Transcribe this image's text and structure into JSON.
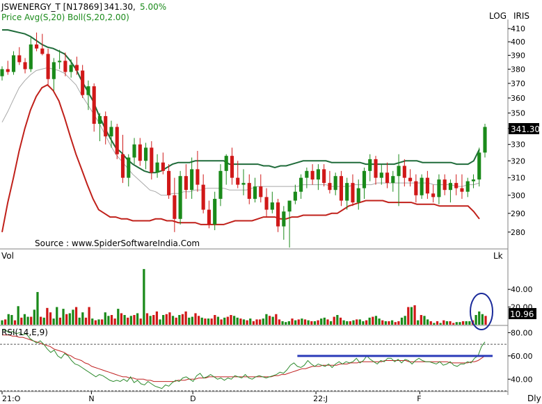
{
  "header": {
    "symbol": "JSWENERGY_T [N17869]",
    "price": "341.30,",
    "change": "5.00%",
    "indicators_prefix": "Price",
    "avg_label": "Avg(S,20)",
    "boll_label": "Boll(S,20,2.00)",
    "log_label": "LOG",
    "iris_label": "IRIS"
  },
  "source_text": "Source : www.SpiderSoftwareIndia.Com",
  "price_badge": "341.30",
  "volume_badge": "10.96",
  "volume_panel": {
    "title": "Vol",
    "unit": "Lk"
  },
  "rsi_panel": {
    "title": "RSI(14,E,9)"
  },
  "timeframe_label": "Dly",
  "colors": {
    "up": "#1a8a1a",
    "down": "#d01818",
    "upper_band": "#1f6b3a",
    "lower_band": "#c0201a",
    "avg": "#a8a8a8",
    "rsi": "#2e8b2e",
    "rsi_signal": "#c02020",
    "trendline": "#2a3ab8",
    "highlight": "#1a2a9a"
  },
  "chart_data": [
    {
      "type": "candlestick",
      "title": "JSWENERGY_T [N17869]",
      "scale": "log",
      "ylim": [
        272,
        416
      ],
      "yticks": [
        280,
        290,
        300,
        310,
        320,
        330,
        340,
        350,
        360,
        370,
        380,
        390,
        400,
        410
      ],
      "x_ticks": [
        "21:O",
        "N",
        "D",
        "22:J",
        "F"
      ],
      "last_price": 341.3,
      "candles": [
        [
          375,
          382,
          372,
          380
        ],
        [
          380,
          386,
          376,
          378
        ],
        [
          378,
          393,
          376,
          390
        ],
        [
          390,
          396,
          383,
          385
        ],
        [
          385,
          388,
          377,
          380
        ],
        [
          380,
          403,
          378,
          398
        ],
        [
          398,
          407,
          393,
          395
        ],
        [
          395,
          406,
          390,
          391
        ],
        [
          391,
          395,
          368,
          373
        ],
        [
          373,
          388,
          365,
          385
        ],
        [
          385,
          394,
          380,
          386
        ],
        [
          386,
          392,
          375,
          378
        ],
        [
          378,
          387,
          374,
          383
        ],
        [
          383,
          389,
          376,
          379
        ],
        [
          379,
          383,
          360,
          362
        ],
        [
          362,
          372,
          352,
          368
        ],
        [
          368,
          370,
          338,
          343
        ],
        [
          343,
          350,
          332,
          348
        ],
        [
          348,
          351,
          330,
          335
        ],
        [
          335,
          345,
          328,
          341
        ],
        [
          341,
          343,
          321,
          324
        ],
        [
          324,
          336,
          307,
          310
        ],
        [
          310,
          324,
          305,
          322
        ],
        [
          322,
          334,
          318,
          330
        ],
        [
          330,
          334,
          317,
          320
        ],
        [
          320,
          331,
          315,
          328
        ],
        [
          328,
          332,
          309,
          313
        ],
        [
          313,
          324,
          310,
          319
        ],
        [
          319,
          325,
          312,
          314
        ],
        [
          314,
          318,
          298,
          300
        ],
        [
          300,
          310,
          280,
          287
        ],
        [
          287,
          314,
          284,
          311
        ],
        [
          311,
          318,
          298,
          303
        ],
        [
          303,
          322,
          298,
          315
        ],
        [
          315,
          326,
          302,
          306
        ],
        [
          306,
          312,
          290,
          292
        ],
        [
          292,
          297,
          282,
          284
        ],
        [
          284,
          302,
          281,
          298
        ],
        [
          298,
          318,
          294,
          314
        ],
        [
          314,
          324,
          306,
          323
        ],
        [
          323,
          328,
          306,
          310
        ],
        [
          310,
          320,
          304,
          306
        ],
        [
          306,
          315,
          300,
          307
        ],
        [
          307,
          312,
          295,
          298
        ],
        [
          298,
          310,
          296,
          305
        ],
        [
          305,
          312,
          296,
          299
        ],
        [
          299,
          304,
          288,
          292
        ],
        [
          292,
          302,
          290,
          296
        ],
        [
          296,
          298,
          280,
          283
        ],
        [
          283,
          294,
          276,
          291
        ],
        [
          291,
          297,
          272,
          297
        ],
        [
          297,
          306,
          295,
          302
        ],
        [
          302,
          312,
          298,
          310
        ],
        [
          310,
          316,
          304,
          314
        ],
        [
          314,
          318,
          306,
          309
        ],
        [
          309,
          318,
          303,
          315
        ],
        [
          315,
          318,
          305,
          307
        ],
        [
          307,
          314,
          301,
          303
        ],
        [
          303,
          313,
          300,
          311
        ],
        [
          311,
          314,
          294,
          297
        ],
        [
          297,
          310,
          292,
          307
        ],
        [
          307,
          312,
          294,
          296
        ],
        [
          296,
          309,
          292,
          304
        ],
        [
          304,
          316,
          298,
          314
        ],
        [
          314,
          324,
          308,
          321
        ],
        [
          321,
          323,
          306,
          310
        ],
        [
          310,
          318,
          306,
          313
        ],
        [
          313,
          319,
          304,
          307
        ],
        [
          307,
          314,
          302,
          311
        ],
        [
          311,
          324,
          294,
          317
        ],
        [
          317,
          321,
          305,
          310
        ],
        [
          310,
          315,
          305,
          308
        ],
        [
          308,
          312,
          296,
          300
        ],
        [
          300,
          312,
          298,
          310
        ],
        [
          310,
          314,
          298,
          301
        ],
        [
          301,
          306,
          296,
          299
        ],
        [
          299,
          312,
          295,
          309
        ],
        [
          309,
          312,
          300,
          303
        ],
        [
          303,
          309,
          296,
          307
        ],
        [
          307,
          312,
          300,
          304
        ],
        [
          304,
          312,
          298,
          302
        ],
        [
          302,
          310,
          299,
          308
        ],
        [
          308,
          312,
          304,
          309
        ],
        [
          309,
          328,
          305,
          325
        ],
        [
          325,
          343,
          322,
          341
        ]
      ],
      "bollinger_upper": [
        409,
        409,
        408,
        407,
        406,
        404,
        401,
        398,
        396,
        395,
        393,
        391,
        386,
        380,
        372,
        365,
        358,
        349,
        341,
        334,
        328,
        325,
        321,
        318,
        316,
        314,
        313,
        313,
        314,
        316,
        318,
        319,
        319,
        319,
        320,
        320,
        320,
        320,
        320,
        320,
        318,
        318,
        318,
        318,
        318,
        318,
        317,
        317,
        316,
        317,
        317,
        318,
        319,
        320,
        320,
        320,
        320,
        320,
        319,
        319,
        319,
        319,
        319,
        319,
        318,
        318,
        318,
        318,
        318,
        318,
        319,
        320,
        320,
        320,
        319,
        319,
        319,
        319,
        319,
        319,
        318,
        318,
        318,
        320,
        327
      ],
      "bollinger_lower": [
        280,
        296,
        310,
        326,
        340,
        352,
        361,
        367,
        369,
        365,
        358,
        347,
        335,
        324,
        315,
        306,
        298,
        292,
        290,
        288,
        288,
        287,
        287,
        286,
        286,
        286,
        286,
        287,
        287,
        286,
        286,
        285,
        285,
        285,
        285,
        284,
        284,
        284,
        284,
        284,
        285,
        286,
        286,
        286,
        286,
        287,
        288,
        288,
        288,
        287,
        287,
        288,
        288,
        289,
        289,
        289,
        289,
        289,
        290,
        290,
        292,
        294,
        295,
        296,
        297,
        297,
        297,
        297,
        296,
        296,
        296,
        296,
        296,
        295,
        295,
        295,
        295,
        294,
        294,
        294,
        294,
        294,
        294,
        291,
        287
      ],
      "moving_average": [
        344,
        351,
        359,
        367,
        372,
        376,
        379,
        380,
        381,
        380,
        379,
        377,
        373,
        369,
        362,
        356,
        350,
        344,
        337,
        330,
        324,
        320,
        316,
        312,
        309,
        306,
        303,
        302,
        300,
        300,
        301,
        301,
        302,
        302,
        303,
        303,
        304,
        304,
        304,
        304,
        303,
        303,
        303,
        303,
        304,
        305,
        305,
        305,
        305,
        305,
        305,
        305,
        305,
        306,
        306,
        306,
        306,
        306,
        305,
        305,
        305,
        305,
        306,
        306,
        306,
        306,
        307,
        307,
        307,
        307,
        307,
        307,
        307,
        307,
        307,
        307,
        306,
        306,
        306,
        306,
        305,
        305,
        306,
        306,
        307
      ]
    },
    {
      "type": "bar",
      "title": "Vol",
      "unit": "Lk",
      "ylim": [
        0,
        70
      ],
      "yticks": [
        20,
        40
      ],
      "last_value": 10.96,
      "values": [
        5,
        6,
        12,
        11,
        5,
        21,
        8,
        12,
        9,
        9,
        17,
        37,
        9,
        8,
        19,
        14,
        7,
        20,
        8,
        18,
        12,
        13,
        17,
        20,
        8,
        14,
        8,
        20,
        7,
        5,
        6,
        6,
        14,
        10,
        11,
        7,
        18,
        13,
        11,
        8,
        10,
        11,
        13,
        7,
        63,
        13,
        10,
        11,
        15,
        6,
        11,
        12,
        14,
        10,
        8,
        11,
        12,
        15,
        8,
        9,
        13,
        10,
        8,
        7,
        7,
        7,
        11,
        9,
        6,
        8,
        9,
        11,
        10,
        8,
        7,
        6,
        5,
        7,
        4,
        6,
        6,
        7,
        12,
        10,
        9,
        12,
        6,
        4,
        3,
        4,
        7,
        5,
        6,
        7,
        6,
        5,
        4,
        4,
        5,
        7,
        8,
        6,
        4,
        9,
        11,
        8,
        5,
        4,
        4,
        5,
        6,
        6,
        4,
        5,
        8,
        9,
        10,
        7,
        5,
        4,
        4,
        5,
        3,
        4,
        8,
        10,
        20,
        20,
        22,
        5,
        11,
        10,
        6,
        4,
        2,
        4,
        2,
        5,
        4,
        4,
        2,
        3,
        3,
        4,
        4,
        4,
        5,
        11,
        15,
        12,
        10
      ],
      "up": [
        true,
        false,
        true,
        true,
        false,
        true,
        false,
        true,
        true,
        false,
        true,
        true,
        false,
        true,
        false,
        false,
        true,
        true,
        false,
        true,
        false,
        true,
        true,
        false,
        true,
        true,
        false,
        false,
        true,
        false,
        true,
        false,
        true,
        true,
        false,
        false,
        true,
        false,
        true,
        false,
        true,
        false,
        true,
        false,
        true,
        false,
        true,
        false,
        false,
        true,
        true,
        false,
        false,
        true,
        false,
        true,
        false,
        false,
        true,
        true,
        false,
        false,
        true,
        false,
        true,
        false,
        false,
        true,
        false,
        true,
        false,
        false,
        true,
        true,
        false,
        true,
        false,
        true,
        false,
        false,
        false,
        true,
        true,
        false,
        true,
        false,
        false,
        true,
        true,
        true,
        false,
        true,
        false,
        true,
        false,
        true,
        false,
        true,
        false,
        true,
        true,
        false,
        true,
        false,
        true,
        false,
        true,
        true,
        false,
        true,
        false,
        true,
        true,
        false,
        true,
        false,
        true,
        true,
        false,
        true,
        false,
        true,
        false,
        false,
        true,
        true,
        false,
        true,
        false,
        true,
        false,
        true,
        true,
        false,
        true,
        false,
        true,
        false,
        true,
        false,
        false,
        true,
        true,
        false,
        true,
        true,
        false,
        true,
        true,
        true,
        false
      ]
    },
    {
      "type": "line",
      "title": "RSI(14,E,9)",
      "ylim": [
        30,
        85
      ],
      "yticks": [
        40,
        60,
        80
      ],
      "reference_levels": [
        30,
        70
      ],
      "horizontal_line": 60,
      "rsi": [
        82,
        82,
        80,
        81,
        79,
        80,
        78,
        79,
        75,
        73,
        71,
        73,
        70,
        66,
        63,
        65,
        60,
        58,
        62,
        60,
        56,
        53,
        52,
        50,
        48,
        46,
        44,
        42,
        44,
        43,
        41,
        39,
        38,
        39,
        38,
        40,
        38,
        42,
        37,
        39,
        36,
        35,
        38,
        36,
        34,
        33,
        32,
        35,
        34,
        37,
        39,
        38,
        41,
        42,
        40,
        38,
        43,
        45,
        41,
        42,
        44,
        42,
        40,
        41,
        39,
        41,
        40,
        43,
        42,
        41,
        44,
        41,
        40,
        42,
        43,
        42,
        41,
        42,
        43,
        44,
        46,
        45,
        48,
        52,
        54,
        51,
        50,
        52,
        56,
        53,
        51,
        53,
        52,
        51,
        53,
        50,
        53,
        55,
        53,
        55,
        54,
        55,
        58,
        54,
        56,
        60,
        57,
        55,
        53,
        56,
        55,
        58,
        58,
        55,
        57,
        54,
        57,
        56,
        53,
        56,
        58,
        56,
        55,
        55,
        54,
        53,
        55,
        52,
        53,
        55,
        52,
        51,
        53,
        53,
        55,
        54,
        58,
        60,
        68,
        72
      ],
      "signal": [
        78,
        78,
        78,
        77,
        77,
        76,
        76,
        75,
        74,
        73,
        72,
        71,
        70,
        69,
        68,
        66,
        65,
        64,
        63,
        61,
        60,
        58,
        57,
        56,
        54,
        53,
        51,
        50,
        49,
        48,
        47,
        46,
        45,
        44,
        43,
        42,
        42,
        41,
        41,
        40,
        40,
        40,
        39,
        39,
        38,
        38,
        38,
        38,
        38,
        38,
        38,
        39,
        39,
        39,
        40,
        40,
        40,
        41,
        41,
        41,
        42,
        42,
        42,
        42,
        42,
        42,
        42,
        42,
        42,
        42,
        42,
        42,
        42,
        42,
        42,
        42,
        42,
        42,
        42,
        43,
        43,
        44,
        44,
        45,
        46,
        47,
        48,
        49,
        49,
        50,
        51,
        51,
        51,
        52,
        52,
        52,
        52,
        52,
        53,
        53,
        53,
        54,
        54,
        54,
        55,
        55,
        55,
        55,
        55,
        55,
        55,
        56,
        56,
        56,
        56,
        56,
        56,
        56,
        55,
        55,
        55,
        55,
        55,
        55,
        55,
        55,
        55,
        55,
        55,
        55,
        54,
        54,
        54,
        54,
        54,
        54,
        55,
        55,
        56,
        58,
        60
      ]
    }
  ]
}
